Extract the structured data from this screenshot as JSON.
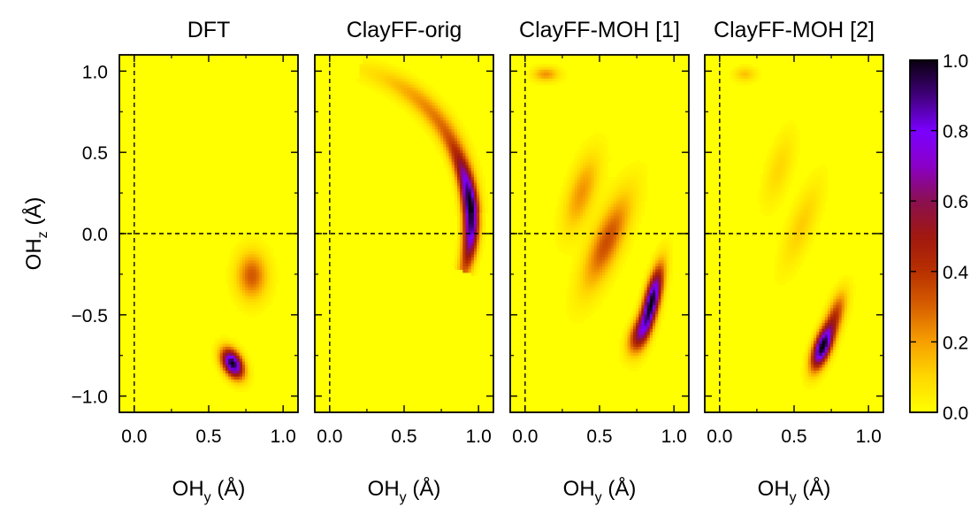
{
  "chart_data": {
    "type": "heatmap",
    "panels": [
      {
        "title": "DFT",
        "xlabel": {
          "main": "OH",
          "sub": "y",
          "unit": " (Å)"
        },
        "blobs": [
          {
            "x": 0.66,
            "y": -0.8,
            "sx": 0.05,
            "sy": 0.06,
            "rho": -0.4,
            "amp": 1.0
          },
          {
            "x": 0.79,
            "y": -0.26,
            "sx": 0.07,
            "sy": 0.1,
            "rho": 0.0,
            "amp": 0.32
          }
        ]
      },
      {
        "title": "ClayFF-orig",
        "xlabel": {
          "main": "OH",
          "sub": "y",
          "unit": " (Å)"
        },
        "arcs": [
          {
            "cx": 0.0,
            "cy": 0.06,
            "r": 0.95,
            "a0": -12,
            "a1": 68,
            "peak": 4,
            "spread": 14,
            "width": 0.035,
            "amp": 1.0
          },
          {
            "cx": 0.0,
            "cy": 0.06,
            "r": 0.97,
            "a0": 10,
            "a1": 72,
            "peak": 40,
            "spread": 22,
            "width": 0.05,
            "amp": 0.25
          }
        ]
      },
      {
        "title": "ClayFF-MOH [1]",
        "xlabel": {
          "main": "OH",
          "sub": "y",
          "unit": " (Å)"
        },
        "blobs": [
          {
            "x": 0.85,
            "y": -0.42,
            "sx": 0.05,
            "sy": 0.14,
            "rho": 0.7,
            "amp": 1.0
          },
          {
            "x": 0.76,
            "y": -0.62,
            "sx": 0.05,
            "sy": 0.08,
            "rho": 0.5,
            "amp": 0.45
          },
          {
            "x": 0.55,
            "y": -0.05,
            "sx": 0.11,
            "sy": 0.2,
            "rho": 0.75,
            "amp": 0.34
          },
          {
            "x": 0.38,
            "y": 0.25,
            "sx": 0.08,
            "sy": 0.16,
            "rho": 0.6,
            "amp": 0.22
          },
          {
            "x": 0.14,
            "y": 0.98,
            "sx": 0.06,
            "sy": 0.03,
            "rho": 0.0,
            "amp": 0.22
          }
        ]
      },
      {
        "title": "ClayFF-MOH [2]",
        "xlabel": {
          "main": "OH",
          "sub": "y",
          "unit": " (Å)"
        },
        "blobs": [
          {
            "x": 0.69,
            "y": -0.7,
            "sx": 0.05,
            "sy": 0.09,
            "rho": 0.6,
            "amp": 1.0
          },
          {
            "x": 0.78,
            "y": -0.5,
            "sx": 0.05,
            "sy": 0.1,
            "rho": 0.6,
            "amp": 0.35
          },
          {
            "x": 0.55,
            "y": 0.05,
            "sx": 0.09,
            "sy": 0.18,
            "rho": 0.75,
            "amp": 0.12
          },
          {
            "x": 0.4,
            "y": 0.4,
            "sx": 0.07,
            "sy": 0.15,
            "rho": 0.6,
            "amp": 0.1
          },
          {
            "x": 0.17,
            "y": 0.98,
            "sx": 0.05,
            "sy": 0.03,
            "rho": 0.0,
            "amp": 0.14
          }
        ]
      }
    ],
    "ylabel": {
      "main": "OH",
      "sub": "z",
      "unit": " (Å)"
    },
    "xlim": [
      -0.1,
      1.1
    ],
    "ylim": [
      -1.1,
      1.1
    ],
    "xticks": [
      "0.0",
      "0.5",
      "1.0"
    ],
    "xtick_values": [
      0.0,
      0.5,
      1.0
    ],
    "yticks": [
      "1.0",
      "0.5",
      "0.0",
      "−0.5",
      "−1.0"
    ],
    "ytick_values": [
      1.0,
      0.5,
      0.0,
      -0.5,
      -1.0
    ],
    "reference_lines": {
      "x": 0.0,
      "y": 0.0,
      "style": "dashed"
    },
    "colorbar": {
      "ticks": [
        "1.0",
        "0.8",
        "0.6",
        "0.4",
        "0.2",
        "0.0"
      ],
      "tick_values": [
        1.0,
        0.8,
        0.6,
        0.4,
        0.2,
        0.0
      ],
      "range": [
        0,
        1
      ]
    },
    "colormap": [
      {
        "v": 0.0,
        "color": "#ffff00"
      },
      {
        "v": 0.1,
        "color": "#ffd800"
      },
      {
        "v": 0.2,
        "color": "#f7a000"
      },
      {
        "v": 0.3,
        "color": "#d86000"
      },
      {
        "v": 0.4,
        "color": "#b83000"
      },
      {
        "v": 0.5,
        "color": "#a01810"
      },
      {
        "v": 0.6,
        "color": "#8a1050"
      },
      {
        "v": 0.7,
        "color": "#8a00c8"
      },
      {
        "v": 0.8,
        "color": "#7a00ff"
      },
      {
        "v": 0.9,
        "color": "#40007a"
      },
      {
        "v": 1.0,
        "color": "#0a0010"
      }
    ]
  }
}
